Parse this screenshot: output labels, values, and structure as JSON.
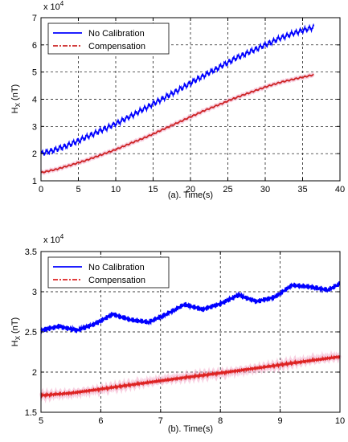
{
  "chart_data": [
    {
      "type": "line",
      "caption": "(a). Time(s)",
      "ylabel": "Hₓ (nT)",
      "ylabel_main": "H",
      "ylabel_sub": "X",
      "ylabel_unit": "(nT)",
      "exponent_label": "x 10",
      "exponent_power": "4",
      "xlim": [
        0,
        40
      ],
      "ylim": [
        1,
        7
      ],
      "x_ticks": [
        0,
        5,
        10,
        15,
        20,
        25,
        30,
        35,
        40
      ],
      "y_ticks": [
        1,
        2,
        3,
        4,
        5,
        6,
        7
      ],
      "grid": true,
      "legend_position": "top-left",
      "series": [
        {
          "name": "No Calibration",
          "color": "#0000ff",
          "style": "solid",
          "oscillation": 0.07,
          "x": [
            0,
            2,
            4,
            6,
            8,
            10,
            12,
            14,
            16,
            18,
            20,
            22,
            24,
            26,
            28,
            30,
            32,
            34,
            36.5
          ],
          "y": [
            2.0,
            2.15,
            2.35,
            2.6,
            2.85,
            3.1,
            3.38,
            3.68,
            3.98,
            4.28,
            4.6,
            4.9,
            5.2,
            5.5,
            5.75,
            6.0,
            6.25,
            6.45,
            6.65
          ]
        },
        {
          "name": "Compensation",
          "color": "#cc2222",
          "style": "dashdot",
          "oscillation": 0.02,
          "x": [
            0,
            2,
            4,
            6,
            8,
            10,
            12,
            14,
            16,
            18,
            20,
            22,
            24,
            26,
            28,
            30,
            32,
            34,
            36.5
          ],
          "y": [
            1.3,
            1.42,
            1.58,
            1.75,
            1.95,
            2.15,
            2.38,
            2.6,
            2.85,
            3.1,
            3.35,
            3.6,
            3.82,
            4.05,
            4.25,
            4.45,
            4.62,
            4.75,
            4.9
          ]
        }
      ]
    },
    {
      "type": "line",
      "caption": "(b). Time(s)",
      "ylabel": "Hₓ (nT)",
      "ylabel_main": "H",
      "ylabel_sub": "X",
      "ylabel_unit": "(nT)",
      "exponent_label": "x 10",
      "exponent_power": "4",
      "xlim": [
        5,
        10
      ],
      "ylim": [
        1.5,
        3.5
      ],
      "x_ticks": [
        5,
        6,
        7,
        8,
        9,
        10
      ],
      "y_ticks": [
        1.5,
        2,
        2.5,
        3,
        3.5
      ],
      "grid": true,
      "legend_position": "top-left",
      "series": [
        {
          "name": "No Calibration",
          "color": "#0000ff",
          "style": "solid",
          "oscillation": 0.025,
          "x": [
            5,
            5.3,
            5.6,
            5.9,
            6.2,
            6.5,
            6.8,
            7.1,
            7.4,
            7.7,
            8.0,
            8.3,
            8.6,
            8.9,
            9.2,
            9.5,
            9.8,
            10
          ],
          "y": [
            2.52,
            2.57,
            2.52,
            2.6,
            2.72,
            2.65,
            2.62,
            2.72,
            2.84,
            2.78,
            2.85,
            2.96,
            2.88,
            2.93,
            3.08,
            3.06,
            3.02,
            3.1
          ]
        },
        {
          "name": "Compensation",
          "color": "#dd2222",
          "style": "dashdot",
          "oscillation": 0.012,
          "x": [
            5,
            5.5,
            6,
            6.5,
            7,
            7.5,
            8,
            8.5,
            9,
            9.5,
            10
          ],
          "y": [
            1.71,
            1.74,
            1.79,
            1.84,
            1.89,
            1.94,
            1.99,
            2.04,
            2.09,
            2.14,
            2.19
          ]
        }
      ]
    }
  ]
}
